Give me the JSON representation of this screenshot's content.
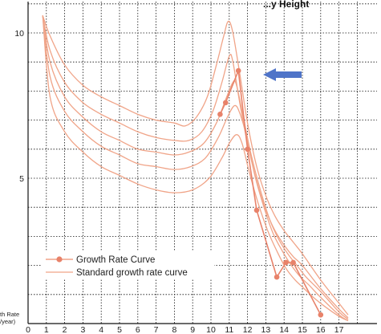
{
  "chart_data": {
    "type": "line",
    "title_fragment": "...y Height",
    "ylabel": [
      "th Rate",
      "/year)"
    ],
    "xlim": [
      0,
      17.5
    ],
    "ylim": [
      0,
      10.5
    ],
    "x_ticks": [
      "0",
      "1",
      "2",
      "3",
      "4",
      "5",
      "6",
      "7",
      "8",
      "9",
      "10",
      "11",
      "12",
      "13",
      "14",
      "15",
      "16",
      "17"
    ],
    "y_ticks": [
      "5",
      "10"
    ],
    "legend": {
      "position": "bottom-left",
      "entries": [
        "Growth Rate Curve",
        "Standard growth rate curve"
      ]
    },
    "colors": {
      "curve": "#f0a488",
      "marker": "#e8826a",
      "arrow": "#4f74c8",
      "grid": "#111111"
    },
    "series": [
      {
        "name": "Growth Rate Curve",
        "x": [
          10.5,
          10.8,
          11.5,
          12.0,
          12.5,
          13.6,
          14.1,
          14.5,
          16.0
        ],
        "y": [
          7.2,
          7.6,
          8.7,
          6.0,
          3.9,
          1.6,
          2.1,
          2.1,
          0.3
        ]
      },
      {
        "x": [
          0.8,
          1.2,
          2,
          3,
          4,
          5,
          6,
          7,
          8,
          8.6,
          9.2,
          9.8,
          10.3,
          10.7,
          10.95,
          11.2,
          11.6,
          12,
          12.5,
          13,
          13.5,
          14,
          14.5,
          15,
          16,
          17,
          17.5
        ],
        "y": [
          10.6,
          9.9,
          8.9,
          8.2,
          7.8,
          7.5,
          7.2,
          7.0,
          6.9,
          6.8,
          7.1,
          7.8,
          8.9,
          9.9,
          10.4,
          10.0,
          8.5,
          6.9,
          5.4,
          4.4,
          3.7,
          3.2,
          2.8,
          2.4,
          1.5,
          0.7,
          0.3
        ]
      },
      {
        "x": [
          0.8,
          1.2,
          2,
          3,
          4,
          5,
          6,
          7,
          8,
          8.8,
          9.5,
          10.1,
          10.6,
          11.0,
          11.2,
          11.6,
          12,
          12.5,
          13,
          13.5,
          14,
          14.5,
          15,
          16,
          17,
          17.5
        ],
        "y": [
          10.6,
          9.4,
          8.3,
          7.6,
          7.2,
          6.9,
          6.6,
          6.4,
          6.3,
          6.3,
          6.6,
          7.3,
          8.3,
          9.2,
          9.0,
          7.5,
          6.2,
          4.9,
          3.9,
          3.2,
          2.7,
          2.3,
          2.0,
          1.2,
          0.5,
          0.2
        ]
      },
      {
        "x": [
          0.8,
          1.2,
          2,
          3,
          4,
          5,
          6,
          7,
          8,
          8.8,
          9.6,
          10.3,
          10.8,
          11.2,
          11.4,
          11.8,
          12.2,
          12.7,
          13.2,
          13.7,
          14.2,
          14.7,
          15.2,
          16,
          17,
          17.5
        ],
        "y": [
          10.6,
          9.0,
          7.8,
          7.1,
          6.6,
          6.3,
          6.0,
          5.9,
          5.8,
          5.9,
          6.2,
          6.9,
          7.7,
          8.3,
          8.2,
          7.0,
          5.8,
          4.6,
          3.6,
          2.9,
          2.4,
          2.0,
          1.6,
          1.1,
          0.4,
          0.15
        ]
      },
      {
        "x": [
          0.8,
          1.2,
          2,
          3,
          4,
          5,
          6,
          7,
          8,
          8.9,
          9.7,
          10.4,
          10.9,
          11.3,
          11.6,
          12,
          12.4,
          12.9,
          13.4,
          13.9,
          14.4,
          14.9,
          15.4,
          16,
          17,
          17.5
        ],
        "y": [
          10.6,
          8.5,
          7.3,
          6.6,
          6.1,
          5.8,
          5.5,
          5.4,
          5.3,
          5.4,
          5.7,
          6.4,
          7.1,
          7.5,
          7.2,
          6.3,
          5.1,
          4.0,
          3.1,
          2.5,
          2.0,
          1.6,
          1.3,
          0.9,
          0.3,
          0.1
        ]
      },
      {
        "x": [
          0.8,
          1.2,
          2,
          3,
          4,
          5,
          6,
          7,
          8,
          9,
          9.9,
          10.6,
          11.0,
          11.4,
          11.7,
          12.1,
          12.6,
          13.1,
          13.6,
          14.1,
          14.6,
          15.1,
          15.6,
          16.2,
          17,
          17.5
        ],
        "y": [
          10.6,
          7.8,
          6.6,
          5.9,
          5.4,
          5.1,
          4.8,
          4.6,
          4.5,
          4.6,
          5.0,
          5.7,
          6.2,
          6.5,
          6.2,
          5.2,
          4.1,
          3.2,
          2.5,
          1.9,
          1.5,
          1.2,
          0.9,
          0.6,
          0.25,
          0.1
        ]
      }
    ]
  }
}
